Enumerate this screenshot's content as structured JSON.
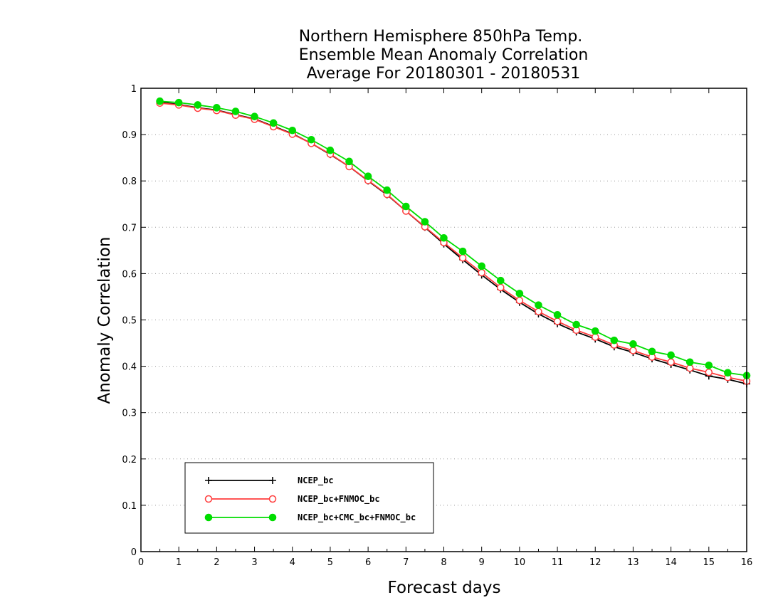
{
  "chart_data": {
    "type": "line",
    "title_lines": [
      "Northern Hemisphere 850hPa Temp.",
      "Ensemble Mean Anomaly Correlation",
      "Average For 20180301 - 20180531"
    ],
    "xlabel": "Forecast days",
    "ylabel": "Anomaly Correlation",
    "xlim": [
      0,
      16
    ],
    "ylim": [
      0,
      1
    ],
    "x_ticks": [
      "0",
      "1",
      "2",
      "3",
      "4",
      "5",
      "6",
      "7",
      "8",
      "9",
      "10",
      "11",
      "12",
      "13",
      "14",
      "15",
      "16"
    ],
    "y_ticks": [
      "0",
      "0.1",
      "0.2",
      "0.3",
      "0.4",
      "0.5",
      "0.6",
      "0.7",
      "0.8",
      "0.9",
      "1"
    ],
    "grid": "horizontal-dotted",
    "legend_position": "bottom-left",
    "x": [
      0.5,
      1,
      1.5,
      2,
      2.5,
      3,
      3.5,
      4,
      4.5,
      5,
      5.5,
      6,
      6.5,
      7,
      7.5,
      8,
      8.5,
      9,
      9.5,
      10,
      10.5,
      11,
      11.5,
      12,
      12.5,
      13,
      13.5,
      14,
      14.5,
      15,
      15.5,
      16
    ],
    "series": [
      {
        "name": "NCEP_bc",
        "color": "#000000",
        "marker": "plus",
        "values": [
          0.97,
          0.965,
          0.958,
          0.953,
          0.943,
          0.934,
          0.918,
          0.902,
          0.881,
          0.857,
          0.831,
          0.8,
          0.77,
          0.735,
          0.7,
          0.664,
          0.63,
          0.597,
          0.566,
          0.538,
          0.513,
          0.492,
          0.474,
          0.459,
          0.442,
          0.43,
          0.416,
          0.404,
          0.392,
          0.379,
          0.372,
          0.362
        ]
      },
      {
        "name": "NCEP_bc+FNMOC_bc",
        "color": "#ff3b3b",
        "marker": "open-circle",
        "values": [
          0.968,
          0.964,
          0.957,
          0.952,
          0.942,
          0.933,
          0.917,
          0.901,
          0.881,
          0.858,
          0.831,
          0.801,
          0.771,
          0.735,
          0.701,
          0.667,
          0.634,
          0.602,
          0.57,
          0.542,
          0.518,
          0.497,
          0.478,
          0.463,
          0.446,
          0.434,
          0.42,
          0.409,
          0.396,
          0.387,
          0.376,
          0.368
        ]
      },
      {
        "name": "NCEP_bc+CMC_bc+FNMOC_bc",
        "color": "#00dd00",
        "marker": "filled-circle",
        "values": [
          0.972,
          0.969,
          0.964,
          0.958,
          0.95,
          0.939,
          0.925,
          0.909,
          0.889,
          0.866,
          0.842,
          0.81,
          0.78,
          0.745,
          0.712,
          0.677,
          0.648,
          0.616,
          0.585,
          0.557,
          0.532,
          0.511,
          0.49,
          0.476,
          0.456,
          0.448,
          0.432,
          0.424,
          0.409,
          0.402,
          0.386,
          0.38
        ]
      }
    ]
  }
}
